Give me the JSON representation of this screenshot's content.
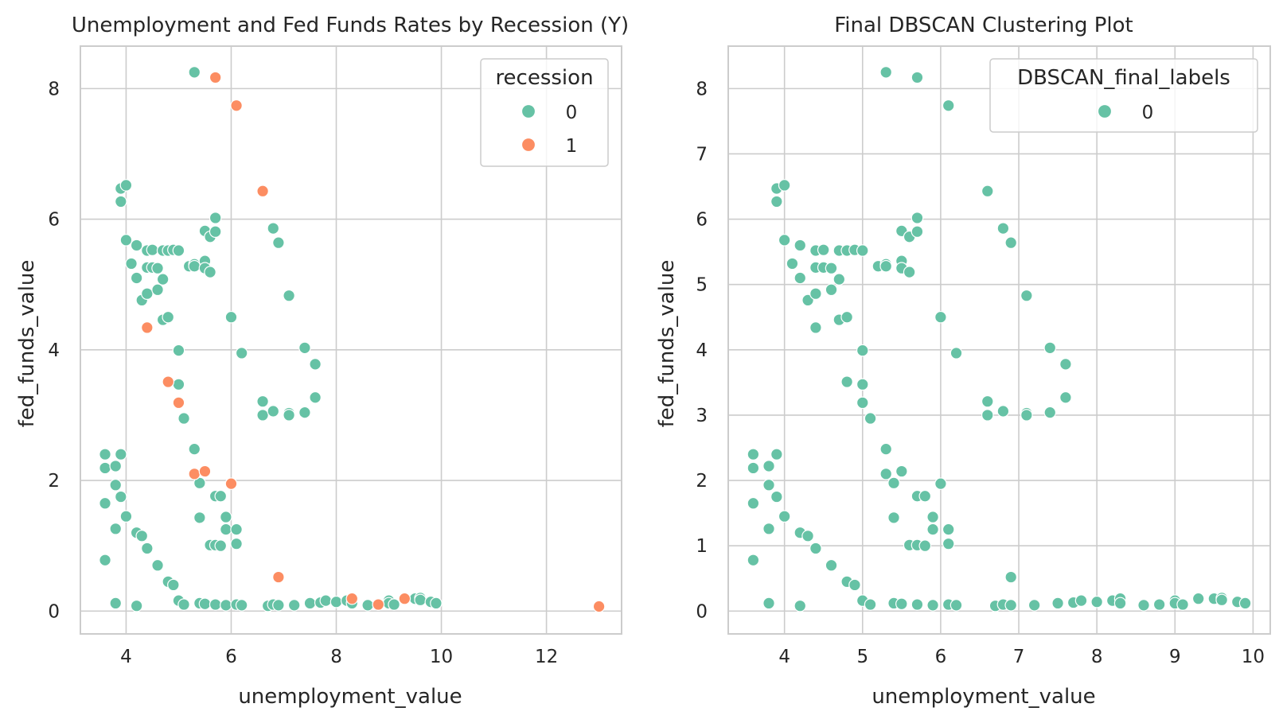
{
  "colors": {
    "series0": "#66c2a5",
    "series1": "#fc8d62",
    "grid": "#cccccc",
    "spine": "#cccccc",
    "text": "#262626",
    "background": "#ffffff"
  },
  "chart_data": [
    {
      "type": "scatter",
      "title": "Unemployment and Fed Funds Rates by Recession (Y)",
      "xlabel": "unemployment_value",
      "ylabel": "fed_funds_value",
      "xlim": [
        3.13,
        13.43
      ],
      "ylim": [
        -0.35,
        8.65
      ],
      "xticks": [
        "4",
        "6",
        "8",
        "10",
        "12"
      ],
      "yticks": [
        "0",
        "2",
        "4",
        "6",
        "8"
      ],
      "grid": true,
      "legend": {
        "title": "recession",
        "placement": "top-right",
        "entries": [
          "0",
          "1"
        ]
      },
      "series": [
        {
          "name": "0",
          "points": [
            [
              5.3,
              8.25
            ],
            [
              3.9,
              6.47
            ],
            [
              4.0,
              6.52
            ],
            [
              3.9,
              6.27
            ],
            [
              4.0,
              5.68
            ],
            [
              4.1,
              5.32
            ],
            [
              4.2,
              5.6
            ],
            [
              4.2,
              5.1
            ],
            [
              4.3,
              4.76
            ],
            [
              4.4,
              5.52
            ],
            [
              4.4,
              5.26
            ],
            [
              4.4,
              4.86
            ],
            [
              4.5,
              5.53
            ],
            [
              4.5,
              5.26
            ],
            [
              4.6,
              5.25
            ],
            [
              4.6,
              4.92
            ],
            [
              4.7,
              5.08
            ],
            [
              4.7,
              4.46
            ],
            [
              4.7,
              5.52
            ],
            [
              4.8,
              5.52
            ],
            [
              4.8,
              4.5
            ],
            [
              4.9,
              5.53
            ],
            [
              5.0,
              5.52
            ],
            [
              5.0,
              3.99
            ],
            [
              5.0,
              3.47
            ],
            [
              5.2,
              5.28
            ],
            [
              5.1,
              2.95
            ],
            [
              5.3,
              5.31
            ],
            [
              5.3,
              5.28
            ],
            [
              5.5,
              5.36
            ],
            [
              5.5,
              5.25
            ],
            [
              5.6,
              5.19
            ],
            [
              5.5,
              5.82
            ],
            [
              5.6,
              5.73
            ],
            [
              5.7,
              5.81
            ],
            [
              5.7,
              6.02
            ],
            [
              6.0,
              4.5
            ],
            [
              6.2,
              3.95
            ],
            [
              6.8,
              5.86
            ],
            [
              6.9,
              5.64
            ],
            [
              7.1,
              4.83
            ],
            [
              7.4,
              4.03
            ],
            [
              7.6,
              3.78
            ],
            [
              7.6,
              3.27
            ],
            [
              6.6,
              3.21
            ],
            [
              6.6,
              3.0
            ],
            [
              6.8,
              3.06
            ],
            [
              7.1,
              3.03
            ],
            [
              7.1,
              3.0
            ],
            [
              7.4,
              3.04
            ],
            [
              5.3,
              2.48
            ],
            [
              5.4,
              1.96
            ],
            [
              5.4,
              1.43
            ],
            [
              5.7,
              1.76
            ],
            [
              5.8,
              1.76
            ],
            [
              5.9,
              1.44
            ],
            [
              5.9,
              1.25
            ],
            [
              6.1,
              1.25
            ],
            [
              5.6,
              1.01
            ],
            [
              5.7,
              1.01
            ],
            [
              5.8,
              1.0
            ],
            [
              6.1,
              1.03
            ],
            [
              3.6,
              2.4
            ],
            [
              3.6,
              2.19
            ],
            [
              3.8,
              2.22
            ],
            [
              3.9,
              2.4
            ],
            [
              3.8,
              1.93
            ],
            [
              3.9,
              1.75
            ],
            [
              3.6,
              1.65
            ],
            [
              4.0,
              1.45
            ],
            [
              3.8,
              1.26
            ],
            [
              3.6,
              0.78
            ],
            [
              4.2,
              1.2
            ],
            [
              4.3,
              1.15
            ],
            [
              4.4,
              0.96
            ],
            [
              4.6,
              0.7
            ],
            [
              4.8,
              0.45
            ],
            [
              4.9,
              0.4
            ],
            [
              5.0,
              0.16
            ],
            [
              5.1,
              0.1
            ],
            [
              3.8,
              0.12
            ],
            [
              4.2,
              0.08
            ],
            [
              5.4,
              0.12
            ],
            [
              5.5,
              0.11
            ],
            [
              5.7,
              0.1
            ],
            [
              5.9,
              0.09
            ],
            [
              6.1,
              0.1
            ],
            [
              6.2,
              0.09
            ],
            [
              6.7,
              0.08
            ],
            [
              6.8,
              0.1
            ],
            [
              6.9,
              0.09
            ],
            [
              7.2,
              0.09
            ],
            [
              7.5,
              0.12
            ],
            [
              7.7,
              0.13
            ],
            [
              7.8,
              0.16
            ],
            [
              8.0,
              0.14
            ],
            [
              8.2,
              0.16
            ],
            [
              8.3,
              0.12
            ],
            [
              8.6,
              0.09
            ],
            [
              8.8,
              0.1
            ],
            [
              9.0,
              0.16
            ],
            [
              9.0,
              0.12
            ],
            [
              9.1,
              0.1
            ],
            [
              9.5,
              0.19
            ],
            [
              9.6,
              0.2
            ],
            [
              9.6,
              0.17
            ],
            [
              9.8,
              0.14
            ],
            [
              9.9,
              0.12
            ]
          ]
        },
        {
          "name": "1",
          "points": [
            [
              5.7,
              8.17
            ],
            [
              6.1,
              7.74
            ],
            [
              6.6,
              6.43
            ],
            [
              4.4,
              4.34
            ],
            [
              4.8,
              3.51
            ],
            [
              5.0,
              3.19
            ],
            [
              5.3,
              2.1
            ],
            [
              5.5,
              2.14
            ],
            [
              6.0,
              1.95
            ],
            [
              6.9,
              0.52
            ],
            [
              8.3,
              0.19
            ],
            [
              8.8,
              0.1
            ],
            [
              9.3,
              0.19
            ],
            [
              13.0,
              0.07
            ]
          ]
        }
      ]
    },
    {
      "type": "scatter",
      "title": "Final DBSCAN Clustering Plot",
      "xlabel": "unemployment_value",
      "ylabel": "fed_funds_value",
      "xlim": [
        3.28,
        10.22
      ],
      "ylim": [
        -0.35,
        8.65
      ],
      "xticks": [
        "4",
        "5",
        "6",
        "7",
        "8",
        "9",
        "10"
      ],
      "yticks": [
        "0",
        "1",
        "2",
        "3",
        "4",
        "5",
        "6",
        "7",
        "8"
      ],
      "grid": true,
      "legend": {
        "title": "DBSCAN_final_labels",
        "placement": "top-right",
        "entries": [
          "0"
        ]
      },
      "series": [
        {
          "name": "0",
          "points": [
            [
              5.3,
              8.25
            ],
            [
              5.7,
              8.17
            ],
            [
              6.1,
              7.74
            ],
            [
              6.6,
              6.43
            ],
            [
              3.9,
              6.47
            ],
            [
              4.0,
              6.52
            ],
            [
              3.9,
              6.27
            ],
            [
              4.0,
              5.68
            ],
            [
              4.1,
              5.32
            ],
            [
              4.2,
              5.6
            ],
            [
              4.2,
              5.1
            ],
            [
              4.3,
              4.76
            ],
            [
              4.4,
              5.52
            ],
            [
              4.4,
              5.26
            ],
            [
              4.4,
              4.86
            ],
            [
              4.4,
              4.34
            ],
            [
              4.5,
              5.53
            ],
            [
              4.5,
              5.26
            ],
            [
              4.6,
              5.25
            ],
            [
              4.6,
              4.92
            ],
            [
              4.7,
              5.08
            ],
            [
              4.7,
              4.46
            ],
            [
              4.7,
              5.52
            ],
            [
              4.8,
              5.52
            ],
            [
              4.8,
              4.5
            ],
            [
              4.8,
              3.51
            ],
            [
              4.9,
              5.53
            ],
            [
              5.0,
              5.52
            ],
            [
              5.0,
              3.99
            ],
            [
              5.0,
              3.47
            ],
            [
              5.0,
              3.19
            ],
            [
              5.2,
              5.28
            ],
            [
              5.1,
              2.95
            ],
            [
              5.3,
              5.31
            ],
            [
              5.3,
              5.28
            ],
            [
              5.5,
              5.36
            ],
            [
              5.5,
              5.25
            ],
            [
              5.6,
              5.19
            ],
            [
              5.5,
              5.82
            ],
            [
              5.6,
              5.73
            ],
            [
              5.7,
              5.81
            ],
            [
              5.7,
              6.02
            ],
            [
              6.0,
              4.5
            ],
            [
              6.2,
              3.95
            ],
            [
              6.8,
              5.86
            ],
            [
              6.9,
              5.64
            ],
            [
              7.1,
              4.83
            ],
            [
              7.4,
              4.03
            ],
            [
              7.6,
              3.78
            ],
            [
              7.6,
              3.27
            ],
            [
              6.6,
              3.21
            ],
            [
              6.6,
              3.0
            ],
            [
              6.8,
              3.06
            ],
            [
              7.1,
              3.03
            ],
            [
              7.1,
              3.0
            ],
            [
              7.4,
              3.04
            ],
            [
              5.3,
              2.48
            ],
            [
              5.3,
              2.1
            ],
            [
              5.5,
              2.14
            ],
            [
              5.4,
              1.96
            ],
            [
              6.0,
              1.95
            ],
            [
              5.4,
              1.43
            ],
            [
              5.7,
              1.76
            ],
            [
              5.8,
              1.76
            ],
            [
              5.9,
              1.44
            ],
            [
              5.9,
              1.25
            ],
            [
              6.1,
              1.25
            ],
            [
              5.6,
              1.01
            ],
            [
              5.7,
              1.01
            ],
            [
              5.8,
              1.0
            ],
            [
              6.1,
              1.03
            ],
            [
              3.6,
              2.4
            ],
            [
              3.6,
              2.19
            ],
            [
              3.8,
              2.22
            ],
            [
              3.9,
              2.4
            ],
            [
              3.8,
              1.93
            ],
            [
              3.9,
              1.75
            ],
            [
              3.6,
              1.65
            ],
            [
              4.0,
              1.45
            ],
            [
              3.8,
              1.26
            ],
            [
              3.6,
              0.78
            ],
            [
              4.2,
              1.2
            ],
            [
              4.3,
              1.15
            ],
            [
              4.4,
              0.96
            ],
            [
              4.6,
              0.7
            ],
            [
              4.8,
              0.45
            ],
            [
              4.9,
              0.4
            ],
            [
              5.0,
              0.16
            ],
            [
              5.1,
              0.1
            ],
            [
              3.8,
              0.12
            ],
            [
              4.2,
              0.08
            ],
            [
              5.4,
              0.12
            ],
            [
              5.5,
              0.11
            ],
            [
              5.7,
              0.1
            ],
            [
              5.9,
              0.09
            ],
            [
              6.1,
              0.1
            ],
            [
              6.2,
              0.09
            ],
            [
              6.7,
              0.08
            ],
            [
              6.8,
              0.1
            ],
            [
              6.9,
              0.09
            ],
            [
              6.9,
              0.52
            ],
            [
              7.2,
              0.09
            ],
            [
              7.5,
              0.12
            ],
            [
              7.7,
              0.13
            ],
            [
              7.8,
              0.16
            ],
            [
              8.0,
              0.14
            ],
            [
              8.2,
              0.16
            ],
            [
              8.3,
              0.19
            ],
            [
              8.3,
              0.12
            ],
            [
              8.6,
              0.09
            ],
            [
              8.8,
              0.1
            ],
            [
              9.0,
              0.16
            ],
            [
              9.0,
              0.12
            ],
            [
              9.1,
              0.1
            ],
            [
              9.3,
              0.19
            ],
            [
              9.5,
              0.19
            ],
            [
              9.6,
              0.2
            ],
            [
              9.6,
              0.17
            ],
            [
              9.8,
              0.14
            ],
            [
              9.9,
              0.12
            ]
          ]
        }
      ]
    }
  ]
}
